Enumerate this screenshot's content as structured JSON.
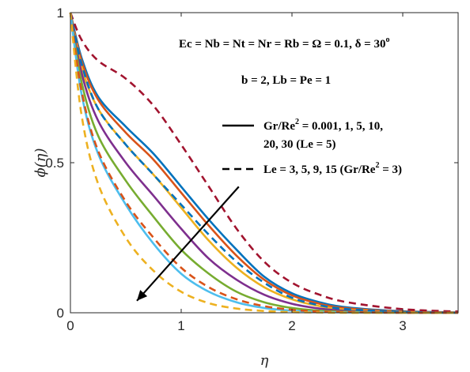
{
  "chart_data": {
    "type": "line",
    "xlabel": "η",
    "ylabel": "ϕ(η)",
    "xlim": [
      0,
      3.5
    ],
    "ylim": [
      0,
      1
    ],
    "xticks": [
      0,
      1,
      2,
      3
    ],
    "yticks": [
      0,
      0.5,
      1
    ],
    "xtick_labels": [
      "0",
      "1",
      "2",
      "3"
    ],
    "ytick_labels": [
      "0",
      "0.5",
      "1"
    ],
    "grid": false,
    "annotations": [
      {
        "id": "params1",
        "text": "Ec = Nb = Nt = Nr = Rb = Ω = 0.1, δ = 30",
        "sup": "o"
      },
      {
        "id": "params2",
        "text": "b = 2,  Lb = Pe = 1",
        "sup": ""
      }
    ],
    "legend": [
      {
        "style": "solid",
        "line1": "Gr/Re",
        "sup": "2",
        "line1_rest": " = 0.001, 1, 5, 10,",
        "line2": "20, 30 (Le = 5)"
      },
      {
        "style": "dashed",
        "line1": "Le = 3, 5, 9, 15 (Gr/Re",
        "sup": "2",
        "line1_rest": " = 3)",
        "line2": ""
      }
    ],
    "arrow": {
      "from": [
        1.52,
        0.42
      ],
      "to": [
        0.6,
        0.04
      ]
    },
    "series": [
      {
        "style": "solid",
        "color": "#0072BD",
        "x": [
          0,
          0.1,
          0.25,
          0.5,
          0.75,
          1.0,
          1.25,
          1.5,
          1.75,
          2.0,
          2.25,
          2.5,
          3.0,
          3.5
        ],
        "y": [
          1,
          0.85,
          0.72,
          0.62,
          0.53,
          0.42,
          0.31,
          0.21,
          0.12,
          0.065,
          0.035,
          0.018,
          0.005,
          0.001
        ]
      },
      {
        "style": "solid",
        "color": "#D95319",
        "x": [
          0,
          0.1,
          0.25,
          0.5,
          0.75,
          1.0,
          1.25,
          1.5,
          1.75,
          2.0,
          2.25,
          2.5,
          3.0,
          3.5
        ],
        "y": [
          1,
          0.84,
          0.71,
          0.6,
          0.51,
          0.4,
          0.29,
          0.19,
          0.11,
          0.058,
          0.03,
          0.015,
          0.004,
          0.001
        ]
      },
      {
        "style": "solid",
        "color": "#EDB120",
        "x": [
          0,
          0.1,
          0.25,
          0.5,
          0.75,
          1.0,
          1.25,
          1.5,
          1.75,
          2.0,
          2.25,
          2.5,
          3.0,
          3.5
        ],
        "y": [
          1,
          0.82,
          0.68,
          0.56,
          0.46,
          0.35,
          0.24,
          0.15,
          0.085,
          0.045,
          0.022,
          0.01,
          0.002,
          0.0
        ]
      },
      {
        "style": "solid",
        "color": "#7E2F8E",
        "x": [
          0,
          0.1,
          0.25,
          0.5,
          0.75,
          1.0,
          1.25,
          1.5,
          1.75,
          2.0,
          2.25,
          2.5,
          3.0,
          3.5
        ],
        "y": [
          1,
          0.8,
          0.64,
          0.5,
          0.39,
          0.28,
          0.18,
          0.11,
          0.06,
          0.03,
          0.014,
          0.006,
          0.001,
          0.0
        ]
      },
      {
        "style": "solid",
        "color": "#77AC30",
        "x": [
          0,
          0.1,
          0.25,
          0.5,
          0.75,
          1.0,
          1.25,
          1.5,
          1.75,
          2.0,
          2.25,
          2.5,
          3.0,
          3.5
        ],
        "y": [
          1,
          0.77,
          0.59,
          0.44,
          0.32,
          0.21,
          0.13,
          0.07,
          0.035,
          0.016,
          0.007,
          0.003,
          0.0,
          0.0
        ]
      },
      {
        "style": "solid",
        "color": "#4DBEEE",
        "x": [
          0,
          0.1,
          0.25,
          0.5,
          0.75,
          1.0,
          1.25,
          1.5,
          1.75,
          2.0,
          2.25,
          2.5,
          3.0,
          3.5
        ],
        "y": [
          1,
          0.73,
          0.53,
          0.36,
          0.23,
          0.13,
          0.07,
          0.035,
          0.016,
          0.007,
          0.003,
          0.001,
          0.0,
          0.0
        ]
      },
      {
        "style": "dashed",
        "color": "#A2142F",
        "x": [
          0,
          0.1,
          0.25,
          0.5,
          0.75,
          1.0,
          1.25,
          1.5,
          1.75,
          2.0,
          2.25,
          2.5,
          3.0,
          3.5
        ],
        "y": [
          1,
          0.91,
          0.84,
          0.78,
          0.69,
          0.56,
          0.42,
          0.28,
          0.17,
          0.1,
          0.06,
          0.035,
          0.012,
          0.004
        ]
      },
      {
        "style": "dashed",
        "color": "#0072BD",
        "x": [
          0,
          0.1,
          0.25,
          0.5,
          0.75,
          1.0,
          1.25,
          1.5,
          1.75,
          2.0,
          2.25,
          2.5,
          3.0,
          3.5
        ],
        "y": [
          1,
          0.83,
          0.68,
          0.56,
          0.46,
          0.36,
          0.26,
          0.17,
          0.1,
          0.05,
          0.025,
          0.012,
          0.003,
          0.0
        ]
      },
      {
        "style": "dashed",
        "color": "#D95319",
        "x": [
          0,
          0.1,
          0.25,
          0.5,
          0.75,
          1.0,
          1.25,
          1.5,
          1.75,
          2.0,
          2.25,
          2.5,
          3.0,
          3.5
        ],
        "y": [
          1,
          0.74,
          0.54,
          0.37,
          0.25,
          0.15,
          0.085,
          0.045,
          0.022,
          0.01,
          0.004,
          0.002,
          0.0,
          0.0
        ]
      },
      {
        "style": "dashed",
        "color": "#EDB120",
        "x": [
          0,
          0.1,
          0.25,
          0.5,
          0.75,
          1.0,
          1.25,
          1.5,
          1.75,
          2.0,
          2.25,
          2.5,
          3.0,
          3.5
        ],
        "y": [
          1,
          0.66,
          0.43,
          0.25,
          0.14,
          0.07,
          0.032,
          0.014,
          0.006,
          0.002,
          0.001,
          0.0,
          0.0,
          0.0
        ]
      }
    ]
  }
}
